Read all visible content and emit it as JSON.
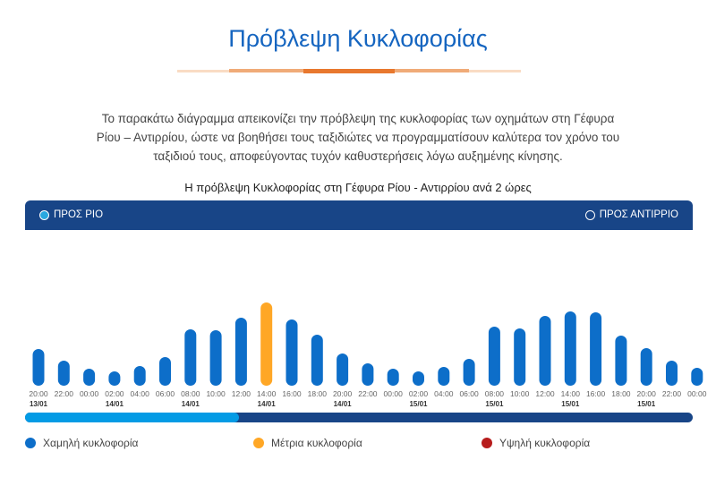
{
  "title": "Πρόβλεψη Κυκλοφορίας",
  "description": "Το παρακάτω διάγραμμα απεικονίζει την πρόβλεψη της κυκλοφορίας των οχημάτων στη Γέφυρα Ρίου – Αντιρρίου, ώστε να βοηθήσει τους ταξιδιώτες να προγραμματίσουν καλύτερα τον χρόνο του ταξιδιού τους, αποφεύγοντας τυχόν καθυστερήσεις λόγω αυξημένης κίνησης.",
  "directions": {
    "rio": "ΠΡΟΣ ΡΙΟ",
    "antirrio": "ΠΡΟΣ ΑΝΤΙΡΡΙΟ",
    "selected": "rio"
  },
  "legend": {
    "low": "Χαμηλή κυκλοφορία",
    "medium": "Μέτρια κυκλοφορία",
    "high": "Υψηλή κυκλοφορία"
  },
  "colors": {
    "low": "#0d6ec9",
    "medium": "#ffa726",
    "high": "#b71c1c",
    "header": "#184587",
    "accent": "#1565c0"
  },
  "scroll_position": 0.32,
  "chart_data": {
    "type": "bar",
    "title": "Η πρόβλεψη Κυκλοφορίας στη Γέφυρα Ρίου - Αντιρρίου ανά 2 ώρες",
    "categories": [
      "20:00",
      "22:00",
      "00:00",
      "02:00",
      "04:00",
      "06:00",
      "08:00",
      "10:00",
      "12:00",
      "14:00",
      "16:00",
      "18:00",
      "20:00",
      "22:00",
      "00:00",
      "02:00",
      "04:00",
      "06:00",
      "08:00",
      "10:00",
      "12:00",
      "14:00",
      "16:00",
      "18:00",
      "20:00",
      "22:00",
      "00:00"
    ],
    "dates": [
      "13/01",
      "",
      "",
      "14/01",
      "",
      "",
      "14/01",
      "",
      "",
      "14/01",
      "",
      "",
      "14/01",
      "",
      "",
      "15/01",
      "",
      "",
      "15/01",
      "",
      "",
      "15/01",
      "",
      "",
      "15/01",
      "",
      ""
    ],
    "values": [
      41,
      28,
      19,
      16,
      22,
      32,
      63,
      62,
      76,
      93,
      74,
      57,
      36,
      25,
      19,
      16,
      21,
      30,
      66,
      64,
      78,
      83,
      82,
      56,
      42,
      28,
      20
    ],
    "levels": [
      "low",
      "low",
      "low",
      "low",
      "low",
      "low",
      "low",
      "low",
      "low",
      "medium",
      "low",
      "low",
      "low",
      "low",
      "low",
      "low",
      "low",
      "low",
      "low",
      "low",
      "low",
      "low",
      "low",
      "low",
      "low",
      "low",
      "low"
    ],
    "grid": false
  }
}
